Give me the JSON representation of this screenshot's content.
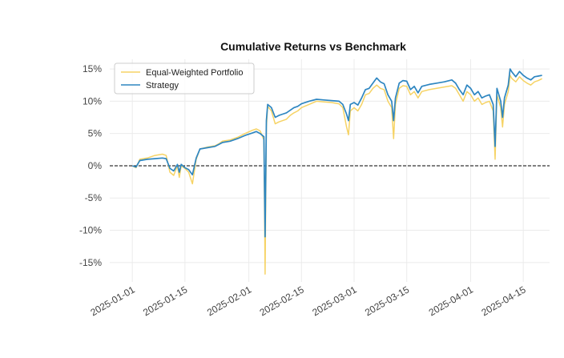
{
  "chart_data": {
    "type": "line",
    "title": "Cumulative Returns vs Benchmark",
    "xlabel": "",
    "ylabel": "",
    "ylim": [
      -0.18,
      0.165
    ],
    "xlim": [
      "2024-12-26",
      "2025-04-22"
    ],
    "y_ticks": [
      {
        "value": 0.15,
        "label": "15%"
      },
      {
        "value": 0.1,
        "label": "10%"
      },
      {
        "value": 0.05,
        "label": "5%"
      },
      {
        "value": 0.0,
        "label": "0%"
      },
      {
        "value": -0.05,
        "label": "-5%"
      },
      {
        "value": -0.1,
        "label": "-10%"
      },
      {
        "value": -0.15,
        "label": "-15%"
      }
    ],
    "x_ticks": [
      {
        "value": "2025-01-01",
        "label": "2025-01-01"
      },
      {
        "value": "2025-01-15",
        "label": "2025-01-15"
      },
      {
        "value": "2025-02-01",
        "label": "2025-02-01"
      },
      {
        "value": "2025-02-15",
        "label": "2025-02-15"
      },
      {
        "value": "2025-03-01",
        "label": "2025-03-01"
      },
      {
        "value": "2025-03-15",
        "label": "2025-03-15"
      },
      {
        "value": "2025-04-01",
        "label": "2025-04-01"
      },
      {
        "value": "2025-04-15",
        "label": "2025-04-15"
      }
    ],
    "grid": true,
    "legend_position": "top-left",
    "reference_line": {
      "y": 0,
      "style": "dashed",
      "color": "#000000"
    },
    "series": [
      {
        "name": "Equal-Weighted Portfolio",
        "color": "#f6d365",
        "points": [
          [
            "2025-01-01",
            0.0
          ],
          [
            "2025-01-02",
            -0.003
          ],
          [
            "2025-01-03",
            0.01
          ],
          [
            "2025-01-05",
            0.012
          ],
          [
            "2025-01-07",
            0.016
          ],
          [
            "2025-01-09",
            0.018
          ],
          [
            "2025-01-10",
            0.016
          ],
          [
            "2025-01-11",
            -0.01
          ],
          [
            "2025-01-12",
            -0.015
          ],
          [
            "2025-01-13",
            0.0
          ],
          [
            "2025-01-13 12:00",
            -0.018
          ],
          [
            "2025-01-14",
            0.0
          ],
          [
            "2025-01-15",
            -0.004
          ],
          [
            "2025-01-16",
            -0.01
          ],
          [
            "2025-01-17",
            -0.028
          ],
          [
            "2025-01-18",
            0.01
          ],
          [
            "2025-01-19",
            0.026
          ],
          [
            "2025-01-21",
            0.029
          ],
          [
            "2025-01-23",
            0.031
          ],
          [
            "2025-01-24",
            0.034
          ],
          [
            "2025-01-25",
            0.038
          ],
          [
            "2025-01-27",
            0.04
          ],
          [
            "2025-01-29",
            0.044
          ],
          [
            "2025-01-31",
            0.05
          ],
          [
            "2025-02-02",
            0.055
          ],
          [
            "2025-02-03",
            0.057
          ],
          [
            "2025-02-04",
            0.054
          ],
          [
            "2025-02-05",
            0.04
          ],
          [
            "2025-02-05 08:00",
            -0.168
          ],
          [
            "2025-02-05 16:00",
            0.06
          ],
          [
            "2025-02-06",
            0.092
          ],
          [
            "2025-02-07",
            0.085
          ],
          [
            "2025-02-08",
            0.065
          ],
          [
            "2025-02-09",
            0.068
          ],
          [
            "2025-02-10",
            0.07
          ],
          [
            "2025-02-11",
            0.072
          ],
          [
            "2025-02-12",
            0.078
          ],
          [
            "2025-02-13",
            0.082
          ],
          [
            "2025-02-14",
            0.085
          ],
          [
            "2025-02-15",
            0.09
          ],
          [
            "2025-02-17",
            0.095
          ],
          [
            "2025-02-19",
            0.1
          ],
          [
            "2025-02-21",
            0.099
          ],
          [
            "2025-02-23",
            0.098
          ],
          [
            "2025-02-25",
            0.096
          ],
          [
            "2025-02-26",
            0.09
          ],
          [
            "2025-02-27",
            0.06
          ],
          [
            "2025-02-27 12:00",
            0.048
          ],
          [
            "2025-02-28",
            0.085
          ],
          [
            "2025-03-01",
            0.09
          ],
          [
            "2025-03-02",
            0.085
          ],
          [
            "2025-03-03",
            0.095
          ],
          [
            "2025-03-04",
            0.11
          ],
          [
            "2025-03-05",
            0.112
          ],
          [
            "2025-03-06",
            0.12
          ],
          [
            "2025-03-07",
            0.125
          ],
          [
            "2025-03-08",
            0.12
          ],
          [
            "2025-03-09",
            0.118
          ],
          [
            "2025-03-10",
            0.1
          ],
          [
            "2025-03-11",
            0.09
          ],
          [
            "2025-03-11 12:00",
            0.042
          ],
          [
            "2025-03-12",
            0.095
          ],
          [
            "2025-03-13",
            0.12
          ],
          [
            "2025-03-14",
            0.124
          ],
          [
            "2025-03-15",
            0.123
          ],
          [
            "2025-03-16",
            0.11
          ],
          [
            "2025-03-17",
            0.115
          ],
          [
            "2025-03-18",
            0.105
          ],
          [
            "2025-03-19",
            0.115
          ],
          [
            "2025-03-21",
            0.118
          ],
          [
            "2025-03-23",
            0.12
          ],
          [
            "2025-03-25",
            0.122
          ],
          [
            "2025-03-27",
            0.124
          ],
          [
            "2025-03-28",
            0.12
          ],
          [
            "2025-03-29",
            0.11
          ],
          [
            "2025-03-30",
            0.1
          ],
          [
            "2025-03-31",
            0.115
          ],
          [
            "2025-04-01",
            0.11
          ],
          [
            "2025-04-02",
            0.1
          ],
          [
            "2025-04-03",
            0.105
          ],
          [
            "2025-04-04",
            0.095
          ],
          [
            "2025-04-05",
            0.098
          ],
          [
            "2025-04-06",
            0.1
          ],
          [
            "2025-04-07",
            0.085
          ],
          [
            "2025-04-07 12:00",
            0.01
          ],
          [
            "2025-04-08",
            0.11
          ],
          [
            "2025-04-09",
            0.09
          ],
          [
            "2025-04-09 12:00",
            0.06
          ],
          [
            "2025-04-10",
            0.095
          ],
          [
            "2025-04-11",
            0.115
          ],
          [
            "2025-04-11 12:00",
            0.14
          ],
          [
            "2025-04-12",
            0.135
          ],
          [
            "2025-04-13",
            0.13
          ],
          [
            "2025-04-14",
            0.138
          ],
          [
            "2025-04-15",
            0.132
          ],
          [
            "2025-04-16",
            0.128
          ],
          [
            "2025-04-17",
            0.125
          ],
          [
            "2025-04-18",
            0.13
          ],
          [
            "2025-04-19",
            0.132
          ],
          [
            "2025-04-20",
            0.135
          ]
        ]
      },
      {
        "name": "Strategy",
        "color": "#2e86c1",
        "points": [
          [
            "2025-01-01",
            0.0
          ],
          [
            "2025-01-02",
            -0.002
          ],
          [
            "2025-01-03",
            0.008
          ],
          [
            "2025-01-05",
            0.01
          ],
          [
            "2025-01-07",
            0.011
          ],
          [
            "2025-01-09",
            0.012
          ],
          [
            "2025-01-10",
            0.011
          ],
          [
            "2025-01-11",
            -0.004
          ],
          [
            "2025-01-12",
            -0.008
          ],
          [
            "2025-01-13",
            0.002
          ],
          [
            "2025-01-13 12:00",
            -0.01
          ],
          [
            "2025-01-14",
            0.002
          ],
          [
            "2025-01-15",
            -0.003
          ],
          [
            "2025-01-16",
            -0.006
          ],
          [
            "2025-01-17",
            -0.014
          ],
          [
            "2025-01-18",
            0.012
          ],
          [
            "2025-01-19",
            0.026
          ],
          [
            "2025-01-21",
            0.028
          ],
          [
            "2025-01-23",
            0.03
          ],
          [
            "2025-01-24",
            0.033
          ],
          [
            "2025-01-25",
            0.036
          ],
          [
            "2025-01-27",
            0.038
          ],
          [
            "2025-01-29",
            0.042
          ],
          [
            "2025-01-31",
            0.047
          ],
          [
            "2025-02-02",
            0.051
          ],
          [
            "2025-02-03",
            0.053
          ],
          [
            "2025-02-04",
            0.05
          ],
          [
            "2025-02-05",
            0.045
          ],
          [
            "2025-02-05 08:00",
            -0.11
          ],
          [
            "2025-02-05 16:00",
            0.07
          ],
          [
            "2025-02-06",
            0.095
          ],
          [
            "2025-02-07",
            0.09
          ],
          [
            "2025-02-08",
            0.075
          ],
          [
            "2025-02-09",
            0.078
          ],
          [
            "2025-02-10",
            0.08
          ],
          [
            "2025-02-11",
            0.082
          ],
          [
            "2025-02-12",
            0.086
          ],
          [
            "2025-02-13",
            0.09
          ],
          [
            "2025-02-14",
            0.092
          ],
          [
            "2025-02-15",
            0.096
          ],
          [
            "2025-02-17",
            0.1
          ],
          [
            "2025-02-19",
            0.103
          ],
          [
            "2025-02-21",
            0.102
          ],
          [
            "2025-02-23",
            0.101
          ],
          [
            "2025-02-25",
            0.1
          ],
          [
            "2025-02-26",
            0.095
          ],
          [
            "2025-02-27",
            0.08
          ],
          [
            "2025-02-27 12:00",
            0.07
          ],
          [
            "2025-02-28",
            0.095
          ],
          [
            "2025-03-01",
            0.098
          ],
          [
            "2025-03-02",
            0.094
          ],
          [
            "2025-03-03",
            0.105
          ],
          [
            "2025-03-04",
            0.118
          ],
          [
            "2025-03-05",
            0.12
          ],
          [
            "2025-03-06",
            0.128
          ],
          [
            "2025-03-07",
            0.136
          ],
          [
            "2025-03-08",
            0.13
          ],
          [
            "2025-03-09",
            0.127
          ],
          [
            "2025-03-10",
            0.11
          ],
          [
            "2025-03-11",
            0.1
          ],
          [
            "2025-03-11 12:00",
            0.07
          ],
          [
            "2025-03-12",
            0.105
          ],
          [
            "2025-03-13",
            0.128
          ],
          [
            "2025-03-14",
            0.132
          ],
          [
            "2025-03-15",
            0.131
          ],
          [
            "2025-03-16",
            0.118
          ],
          [
            "2025-03-17",
            0.123
          ],
          [
            "2025-03-18",
            0.113
          ],
          [
            "2025-03-19",
            0.123
          ],
          [
            "2025-03-21",
            0.126
          ],
          [
            "2025-03-23",
            0.128
          ],
          [
            "2025-03-25",
            0.13
          ],
          [
            "2025-03-27",
            0.133
          ],
          [
            "2025-03-28",
            0.128
          ],
          [
            "2025-03-29",
            0.118
          ],
          [
            "2025-03-30",
            0.11
          ],
          [
            "2025-03-31",
            0.125
          ],
          [
            "2025-04-01",
            0.12
          ],
          [
            "2025-04-02",
            0.11
          ],
          [
            "2025-04-03",
            0.115
          ],
          [
            "2025-04-04",
            0.105
          ],
          [
            "2025-04-05",
            0.108
          ],
          [
            "2025-04-06",
            0.11
          ],
          [
            "2025-04-07",
            0.095
          ],
          [
            "2025-04-07 12:00",
            0.03
          ],
          [
            "2025-04-08",
            0.12
          ],
          [
            "2025-04-09",
            0.1
          ],
          [
            "2025-04-09 12:00",
            0.075
          ],
          [
            "2025-04-10",
            0.105
          ],
          [
            "2025-04-11",
            0.125
          ],
          [
            "2025-04-11 12:00",
            0.15
          ],
          [
            "2025-04-12",
            0.145
          ],
          [
            "2025-04-13",
            0.138
          ],
          [
            "2025-04-14",
            0.146
          ],
          [
            "2025-04-15",
            0.14
          ],
          [
            "2025-04-16",
            0.136
          ],
          [
            "2025-04-17",
            0.133
          ],
          [
            "2025-04-18",
            0.138
          ],
          [
            "2025-04-19",
            0.139
          ],
          [
            "2025-04-20",
            0.14
          ]
        ]
      }
    ]
  }
}
